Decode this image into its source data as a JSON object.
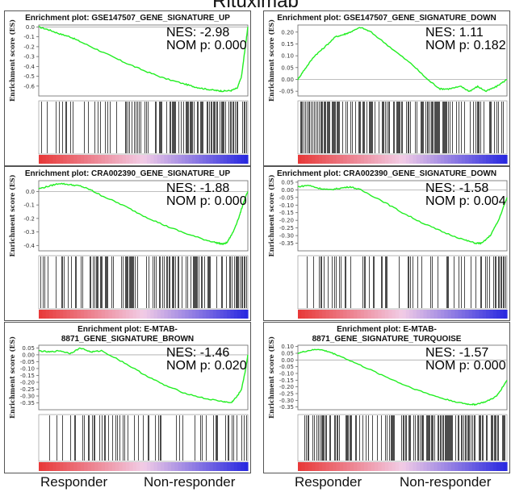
{
  "figure": {
    "title": "Rituximab",
    "footer": {
      "left_low": "Responder",
      "left_high": "Non-responder",
      "right_low": "Responder",
      "right_high": "Non-responder"
    }
  },
  "colors": {
    "curve": "#22ee22",
    "zero_line": "#aaaaaa",
    "hits": "#000000",
    "rank_high": "#e83a3a",
    "rank_mid": "#f2cce6",
    "rank_low": "#2a2ae0"
  },
  "chart_data": [
    {
      "type": "line",
      "title": "Enrichment plot: GSE147507_GENE_SIGNATURE_UP",
      "ylabel": "Enrichment score (ES)",
      "nes": "NES: -2.98",
      "pval": "NOM p: 0.000",
      "ylim": [
        -0.7,
        0.02
      ],
      "yticks": [
        0.0,
        -0.1,
        -0.2,
        -0.3,
        -0.4,
        -0.5,
        -0.6
      ],
      "ytick_labels": [
        "0.0",
        "-0.1",
        "-0.2",
        "-0.3",
        "-0.4",
        "-0.5",
        "-0.6"
      ],
      "x": [
        0,
        0.05,
        0.1,
        0.15,
        0.2,
        0.3,
        0.4,
        0.5,
        0.6,
        0.7,
        0.75,
        0.8,
        0.85,
        0.88,
        0.92,
        0.95,
        0.97,
        0.985,
        1.0
      ],
      "y": [
        0.0,
        -0.03,
        -0.07,
        -0.1,
        -0.15,
        -0.25,
        -0.35,
        -0.44,
        -0.52,
        -0.58,
        -0.61,
        -0.63,
        -0.645,
        -0.65,
        -0.645,
        -0.62,
        -0.5,
        -0.25,
        0.0
      ],
      "hits_density": [
        0.25,
        0.3,
        0.35,
        0.45,
        0.6,
        0.8,
        0.95,
        1.0
      ]
    },
    {
      "type": "line",
      "title": "Enrichment plot: GSE147507_GENE_SIGNATURE_DOWN",
      "ylabel": "Enrichment score (ES)",
      "nes": "NES: 1.11",
      "pval": "NOM p: 0.182",
      "ylim": [
        -0.07,
        0.23
      ],
      "yticks": [
        0.2,
        0.15,
        0.1,
        0.05,
        0.0,
        -0.05
      ],
      "ytick_labels": [
        "0.20",
        "0.15",
        "0.10",
        "0.05",
        "0.00",
        "-0.05"
      ],
      "x": [
        0,
        0.03,
        0.08,
        0.12,
        0.18,
        0.22,
        0.25,
        0.3,
        0.35,
        0.45,
        0.55,
        0.62,
        0.68,
        0.72,
        0.78,
        0.82,
        0.86,
        0.9,
        0.95,
        1.0
      ],
      "y": [
        0.0,
        0.04,
        0.1,
        0.13,
        0.18,
        0.19,
        0.2,
        0.22,
        0.2,
        0.13,
        0.06,
        0.0,
        -0.04,
        -0.04,
        -0.03,
        -0.05,
        -0.03,
        -0.05,
        -0.03,
        0.0
      ],
      "hits_density": [
        0.9,
        1.0,
        0.95,
        0.9,
        0.8,
        0.75,
        0.7,
        0.65
      ]
    },
    {
      "type": "line",
      "title": "Enrichment plot: CRA002390_GENE_SIGNATURE_UP",
      "ylabel": "Enrichment score (ES)",
      "nes": "NES: -1.88",
      "pval": "NOM p: 0.000",
      "ylim": [
        -0.44,
        0.08
      ],
      "yticks": [
        0.0,
        -0.1,
        -0.2,
        -0.3,
        -0.4
      ],
      "ytick_labels": [
        "0.0",
        "-0.1",
        "-0.2",
        "-0.3",
        "-0.4"
      ],
      "x": [
        0,
        0.05,
        0.1,
        0.15,
        0.2,
        0.25,
        0.3,
        0.4,
        0.5,
        0.6,
        0.7,
        0.8,
        0.85,
        0.88,
        0.9,
        0.93,
        0.96,
        0.98,
        1.0
      ],
      "y": [
        0.02,
        0.04,
        0.06,
        0.05,
        0.04,
        0.01,
        -0.03,
        -0.1,
        -0.18,
        -0.25,
        -0.31,
        -0.36,
        -0.38,
        -0.39,
        -0.38,
        -0.3,
        -0.18,
        -0.08,
        0.0
      ],
      "hits_density": [
        0.5,
        0.7,
        0.8,
        0.75,
        0.7,
        0.75,
        0.85,
        0.9
      ]
    },
    {
      "type": "line",
      "title": "Enrichment plot: CRA002390_GENE_SIGNATURE_DOWN",
      "ylabel": "Enrichment score (ES)",
      "nes": "NES: -1.58",
      "pval": "NOM p: 0.004",
      "ylim": [
        -0.4,
        0.06
      ],
      "yticks": [
        0.05,
        0.0,
        -0.05,
        -0.1,
        -0.15,
        -0.2,
        -0.25,
        -0.3,
        -0.35
      ],
      "ytick_labels": [
        "0.05",
        "0.00",
        "-0.05",
        "-0.10",
        "-0.15",
        "-0.20",
        "-0.25",
        "-0.30",
        "-0.35"
      ],
      "x": [
        0,
        0.05,
        0.1,
        0.15,
        0.2,
        0.25,
        0.3,
        0.4,
        0.5,
        0.6,
        0.7,
        0.8,
        0.85,
        0.88,
        0.92,
        0.96,
        1.0
      ],
      "y": [
        0.02,
        0.03,
        0.01,
        0.0,
        0.01,
        0.02,
        0.0,
        -0.07,
        -0.15,
        -0.22,
        -0.28,
        -0.33,
        -0.35,
        -0.35,
        -0.3,
        -0.2,
        -0.05
      ],
      "hits_density": [
        0.4,
        0.45,
        0.5,
        0.45,
        0.4,
        0.45,
        0.5,
        0.55
      ]
    },
    {
      "type": "line",
      "title": "Enrichment plot: E-MTAB-8871_GENE_SIGNATURE_BROWN",
      "ylabel": "Enrichment score (ES)",
      "nes": "NES: -1.46",
      "pval": "NOM p: 0.020",
      "ylim": [
        -0.4,
        0.07
      ],
      "yticks": [
        0.05,
        0.0,
        -0.05,
        -0.1,
        -0.15,
        -0.2,
        -0.25,
        -0.3,
        -0.35
      ],
      "ytick_labels": [
        "0.05",
        "0.00",
        "-0.05",
        "-0.10",
        "-0.15",
        "-0.20",
        "-0.25",
        "-0.30",
        "-0.35"
      ],
      "x": [
        0,
        0.05,
        0.1,
        0.15,
        0.2,
        0.25,
        0.3,
        0.4,
        0.5,
        0.6,
        0.7,
        0.8,
        0.88,
        0.92,
        0.95,
        0.97,
        0.99,
        1.0
      ],
      "y": [
        0.03,
        0.02,
        0.03,
        0.01,
        0.05,
        0.02,
        0.03,
        -0.05,
        -0.14,
        -0.22,
        -0.28,
        -0.32,
        -0.34,
        -0.35,
        -0.3,
        -0.25,
        -0.1,
        0.0
      ],
      "hits_density": [
        0.35,
        0.4,
        0.4,
        0.35,
        0.3,
        0.35,
        0.4,
        0.45
      ]
    },
    {
      "type": "line",
      "title": "Enrichment plot: E-MTAB-8871_GENE_SIGNATURE_TURQUOISE",
      "ylabel": "Enrichment score (ES)",
      "nes": "NES: -1.57",
      "pval": "NOM p: 0.000",
      "ylim": [
        -0.37,
        0.11
      ],
      "yticks": [
        0.1,
        0.05,
        0.0,
        -0.05,
        -0.1,
        -0.15,
        -0.2,
        -0.25,
        -0.3,
        -0.35
      ],
      "ytick_labels": [
        "0.10",
        "0.05",
        "0.00",
        "-0.05",
        "-0.10",
        "-0.15",
        "-0.20",
        "-0.25",
        "-0.30",
        "-0.35"
      ],
      "x": [
        0,
        0.05,
        0.1,
        0.15,
        0.2,
        0.3,
        0.4,
        0.5,
        0.6,
        0.7,
        0.78,
        0.82,
        0.85,
        0.9,
        0.95,
        0.98,
        1.0
      ],
      "y": [
        0.05,
        0.07,
        0.08,
        0.06,
        0.03,
        -0.04,
        -0.11,
        -0.18,
        -0.24,
        -0.29,
        -0.32,
        -0.33,
        -0.33,
        -0.31,
        -0.27,
        -0.2,
        -0.15
      ],
      "hits_density": [
        0.6,
        0.65,
        0.7,
        0.7,
        0.75,
        0.8,
        0.85,
        0.9
      ]
    }
  ]
}
